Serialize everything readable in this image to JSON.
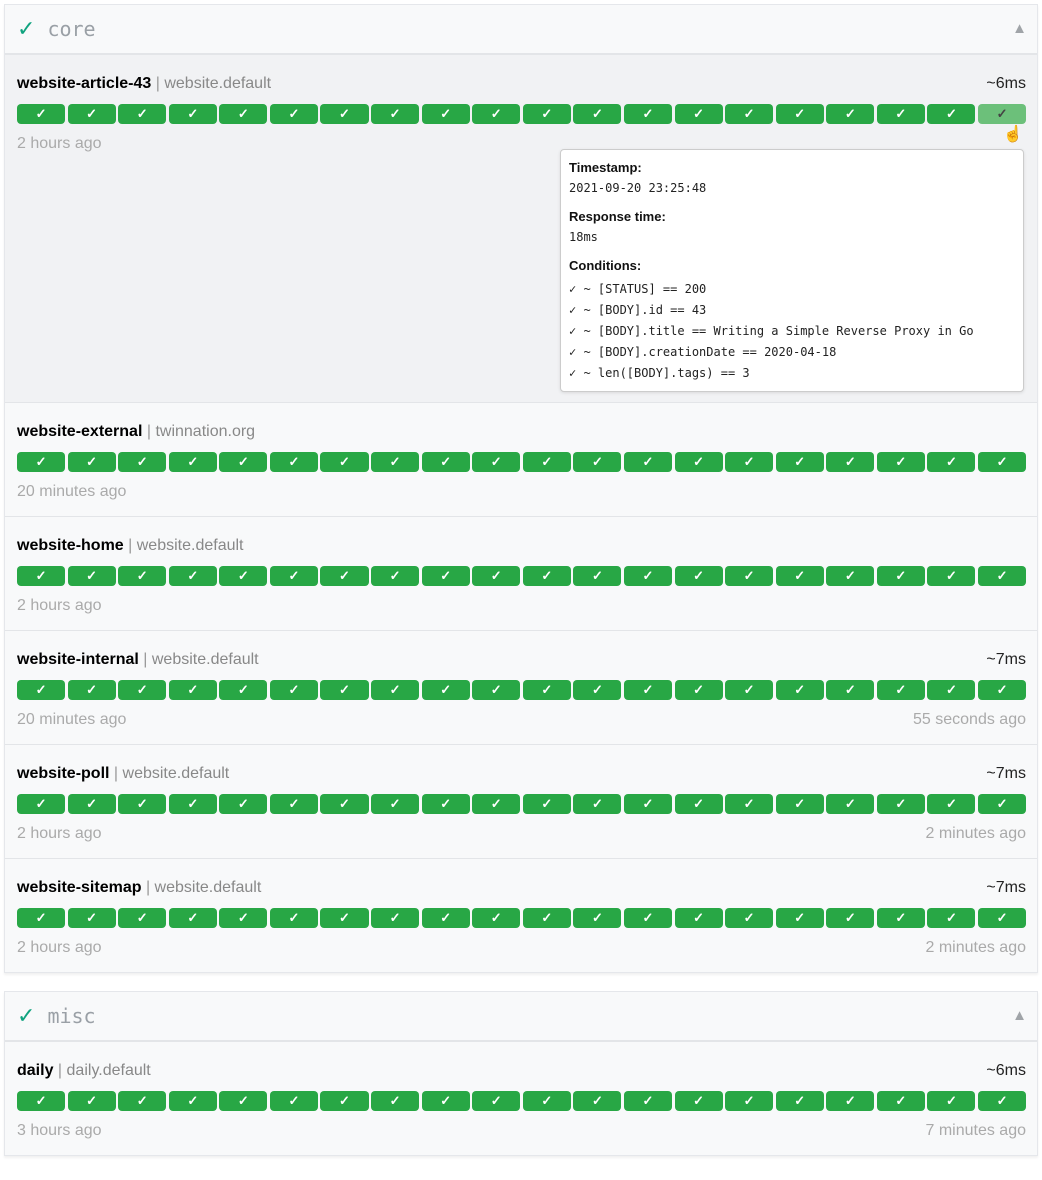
{
  "groups": [
    {
      "name": "core",
      "status_icon": "✓",
      "collapse_icon": "▲",
      "endpoints": [
        {
          "name": "website-article-43",
          "group": "website.default",
          "response": "~6ms",
          "oldest": "2 hours ago",
          "newest": ""
        },
        {
          "name": "website-external",
          "group": "twinnation.org",
          "response": "",
          "oldest": "20 minutes ago",
          "newest": ""
        },
        {
          "name": "website-home",
          "group": "website.default",
          "response": "",
          "oldest": "2 hours ago",
          "newest": ""
        },
        {
          "name": "website-internal",
          "group": "website.default",
          "response": "~7ms",
          "oldest": "20 minutes ago",
          "newest": "55 seconds ago"
        },
        {
          "name": "website-poll",
          "group": "website.default",
          "response": "~7ms",
          "oldest": "2 hours ago",
          "newest": "2 minutes ago"
        },
        {
          "name": "website-sitemap",
          "group": "website.default",
          "response": "~7ms",
          "oldest": "2 hours ago",
          "newest": "2 minutes ago"
        }
      ]
    },
    {
      "name": "misc",
      "status_icon": "✓",
      "collapse_icon": "▲",
      "endpoints": [
        {
          "name": "daily",
          "group": "daily.default",
          "response": "~6ms",
          "oldest": "3 hours ago",
          "newest": "7 minutes ago"
        }
      ]
    }
  ],
  "result_icon": "✓",
  "results_per_endpoint": 20,
  "colors": {
    "success": "#28a745",
    "hover": "#6cc07a",
    "group_check": "#10a37f"
  },
  "tooltip": {
    "timestamp_label": "Timestamp:",
    "timestamp": "2021-09-20 23:25:48",
    "response_label": "Response time:",
    "response": "18ms",
    "conditions_label": "Conditions:",
    "conditions": [
      "✓ ~ [STATUS] == 200",
      "✓ ~ [BODY].id == 43",
      "✓ ~ [BODY].title == Writing a Simple Reverse Proxy in Go",
      "✓ ~ [BODY].creationDate == 2020-04-18",
      "✓ ~ len([BODY].tags) == 3"
    ]
  }
}
